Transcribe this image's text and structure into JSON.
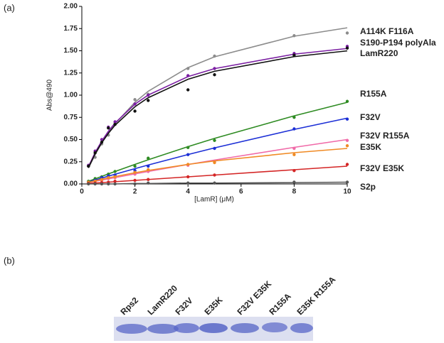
{
  "panel_labels": [
    "(a)",
    "(b)"
  ],
  "chart_data": {
    "type": "line",
    "x_label": "[LamR] (μM)",
    "y_label": "Abs@490",
    "x": [
      0.25,
      0.5,
      0.75,
      1,
      1.25,
      2,
      2.5,
      4,
      5,
      8,
      10
    ],
    "xlim": [
      0,
      10
    ],
    "xticks": [
      0,
      2,
      4,
      6,
      8,
      10
    ],
    "ylim": [
      0,
      2
    ],
    "yticks": [
      {
        "value": 0,
        "label": "0.00"
      },
      {
        "value": 0.25,
        "label": "0.25"
      },
      {
        "value": 0.5,
        "label": "0.50"
      },
      {
        "value": 0.75,
        "label": "0.75"
      },
      {
        "value": 1,
        "label": "1.00"
      },
      {
        "value": 1.25,
        "label": "1.25"
      },
      {
        "value": 1.5,
        "label": "1.50"
      },
      {
        "value": 1.75,
        "label": "1.75"
      },
      {
        "value": 2,
        "label": "2.00"
      }
    ],
    "series": [
      {
        "name": "A114K F116A",
        "color": "#8c8c8c",
        "values": [
          0.2,
          0.3,
          0.45,
          0.55,
          0.68,
          0.95,
          1.01,
          1.3,
          1.44,
          1.67,
          1.7
        ],
        "fit": [
          0.178,
          0.329,
          0.461,
          0.576,
          0.677,
          0.919,
          1.044,
          1.31,
          1.432,
          1.664,
          1.759
        ]
      },
      {
        "name": "S190-P194 polyAla",
        "color": "#7b1fa2",
        "values": [
          0.21,
          0.37,
          0.5,
          0.64,
          0.7,
          0.9,
          1.0,
          1.22,
          1.3,
          1.47,
          1.55
        ],
        "fit": [
          0.195,
          0.353,
          0.483,
          0.593,
          0.686,
          0.898,
          1.001,
          1.209,
          1.299,
          1.462,
          1.526
        ]
      },
      {
        "name": "LamR220",
        "color": "#111111",
        "values": [
          0.2,
          0.35,
          0.47,
          0.63,
          0.67,
          0.82,
          0.94,
          1.06,
          1.23,
          1.45,
          1.53
        ],
        "fit": [
          0.186,
          0.338,
          0.464,
          0.57,
          0.661,
          0.869,
          0.971,
          1.179,
          1.269,
          1.434,
          1.499
        ]
      },
      {
        "name": "R155A",
        "color": "#2e8b22",
        "values": [
          0.03,
          0.06,
          0.08,
          0.11,
          0.14,
          0.2,
          0.29,
          0.41,
          0.49,
          0.75,
          0.93
        ],
        "fit": [
          0.029,
          0.057,
          0.085,
          0.113,
          0.14,
          0.22,
          0.272,
          0.42,
          0.513,
          0.767,
          0.919
        ]
      },
      {
        "name": "F32V",
        "color": "#1c2fd6",
        "values": [
          0.02,
          0.04,
          0.07,
          0.09,
          0.1,
          0.15,
          0.2,
          0.33,
          0.4,
          0.62,
          0.73
        ],
        "fit": [
          0.022,
          0.044,
          0.066,
          0.088,
          0.109,
          0.172,
          0.213,
          0.331,
          0.406,
          0.614,
          0.741
        ]
      },
      {
        "name": "F32V R155A",
        "color": "#f06aa8",
        "values": [
          0.01,
          0.03,
          0.04,
          0.06,
          0.07,
          0.11,
          0.14,
          0.21,
          0.25,
          0.4,
          0.49
        ],
        "fit": [
          0.015,
          0.029,
          0.043,
          0.057,
          0.071,
          0.113,
          0.14,
          0.219,
          0.269,
          0.412,
          0.5
        ]
      },
      {
        "name": "E35K",
        "color": "#f08a24",
        "values": [
          0.02,
          0.03,
          0.05,
          0.07,
          0.08,
          0.13,
          0.16,
          0.22,
          0.24,
          0.33,
          0.43
        ],
        "fit": [
          0.018,
          0.035,
          0.052,
          0.068,
          0.083,
          0.126,
          0.152,
          0.22,
          0.259,
          0.352,
          0.4
        ]
      },
      {
        "name": "F32V E35K",
        "color": "#d42525",
        "values": [
          0.005,
          0.01,
          0.015,
          0.02,
          0.03,
          0.04,
          0.05,
          0.08,
          0.1,
          0.15,
          0.22
        ],
        "fit": [
          0.005,
          0.01,
          0.015,
          0.02,
          0.025,
          0.04,
          0.05,
          0.08,
          0.1,
          0.16,
          0.2
        ]
      },
      {
        "name": "S2p",
        "color": "#555555",
        "values": [
          0,
          0,
          0,
          0,
          0,
          0,
          0.01,
          0.01,
          0.01,
          0.02,
          0.02
        ],
        "fit": [
          0,
          0,
          0,
          0,
          0,
          0.005,
          0.005,
          0.01,
          0.01,
          0.015,
          0.02
        ]
      }
    ]
  },
  "gel": {
    "lanes": [
      "Rps2",
      "LamR220",
      "F32V",
      "E35K",
      "F32V E35K",
      "R155A",
      "E35K R155A"
    ]
  }
}
